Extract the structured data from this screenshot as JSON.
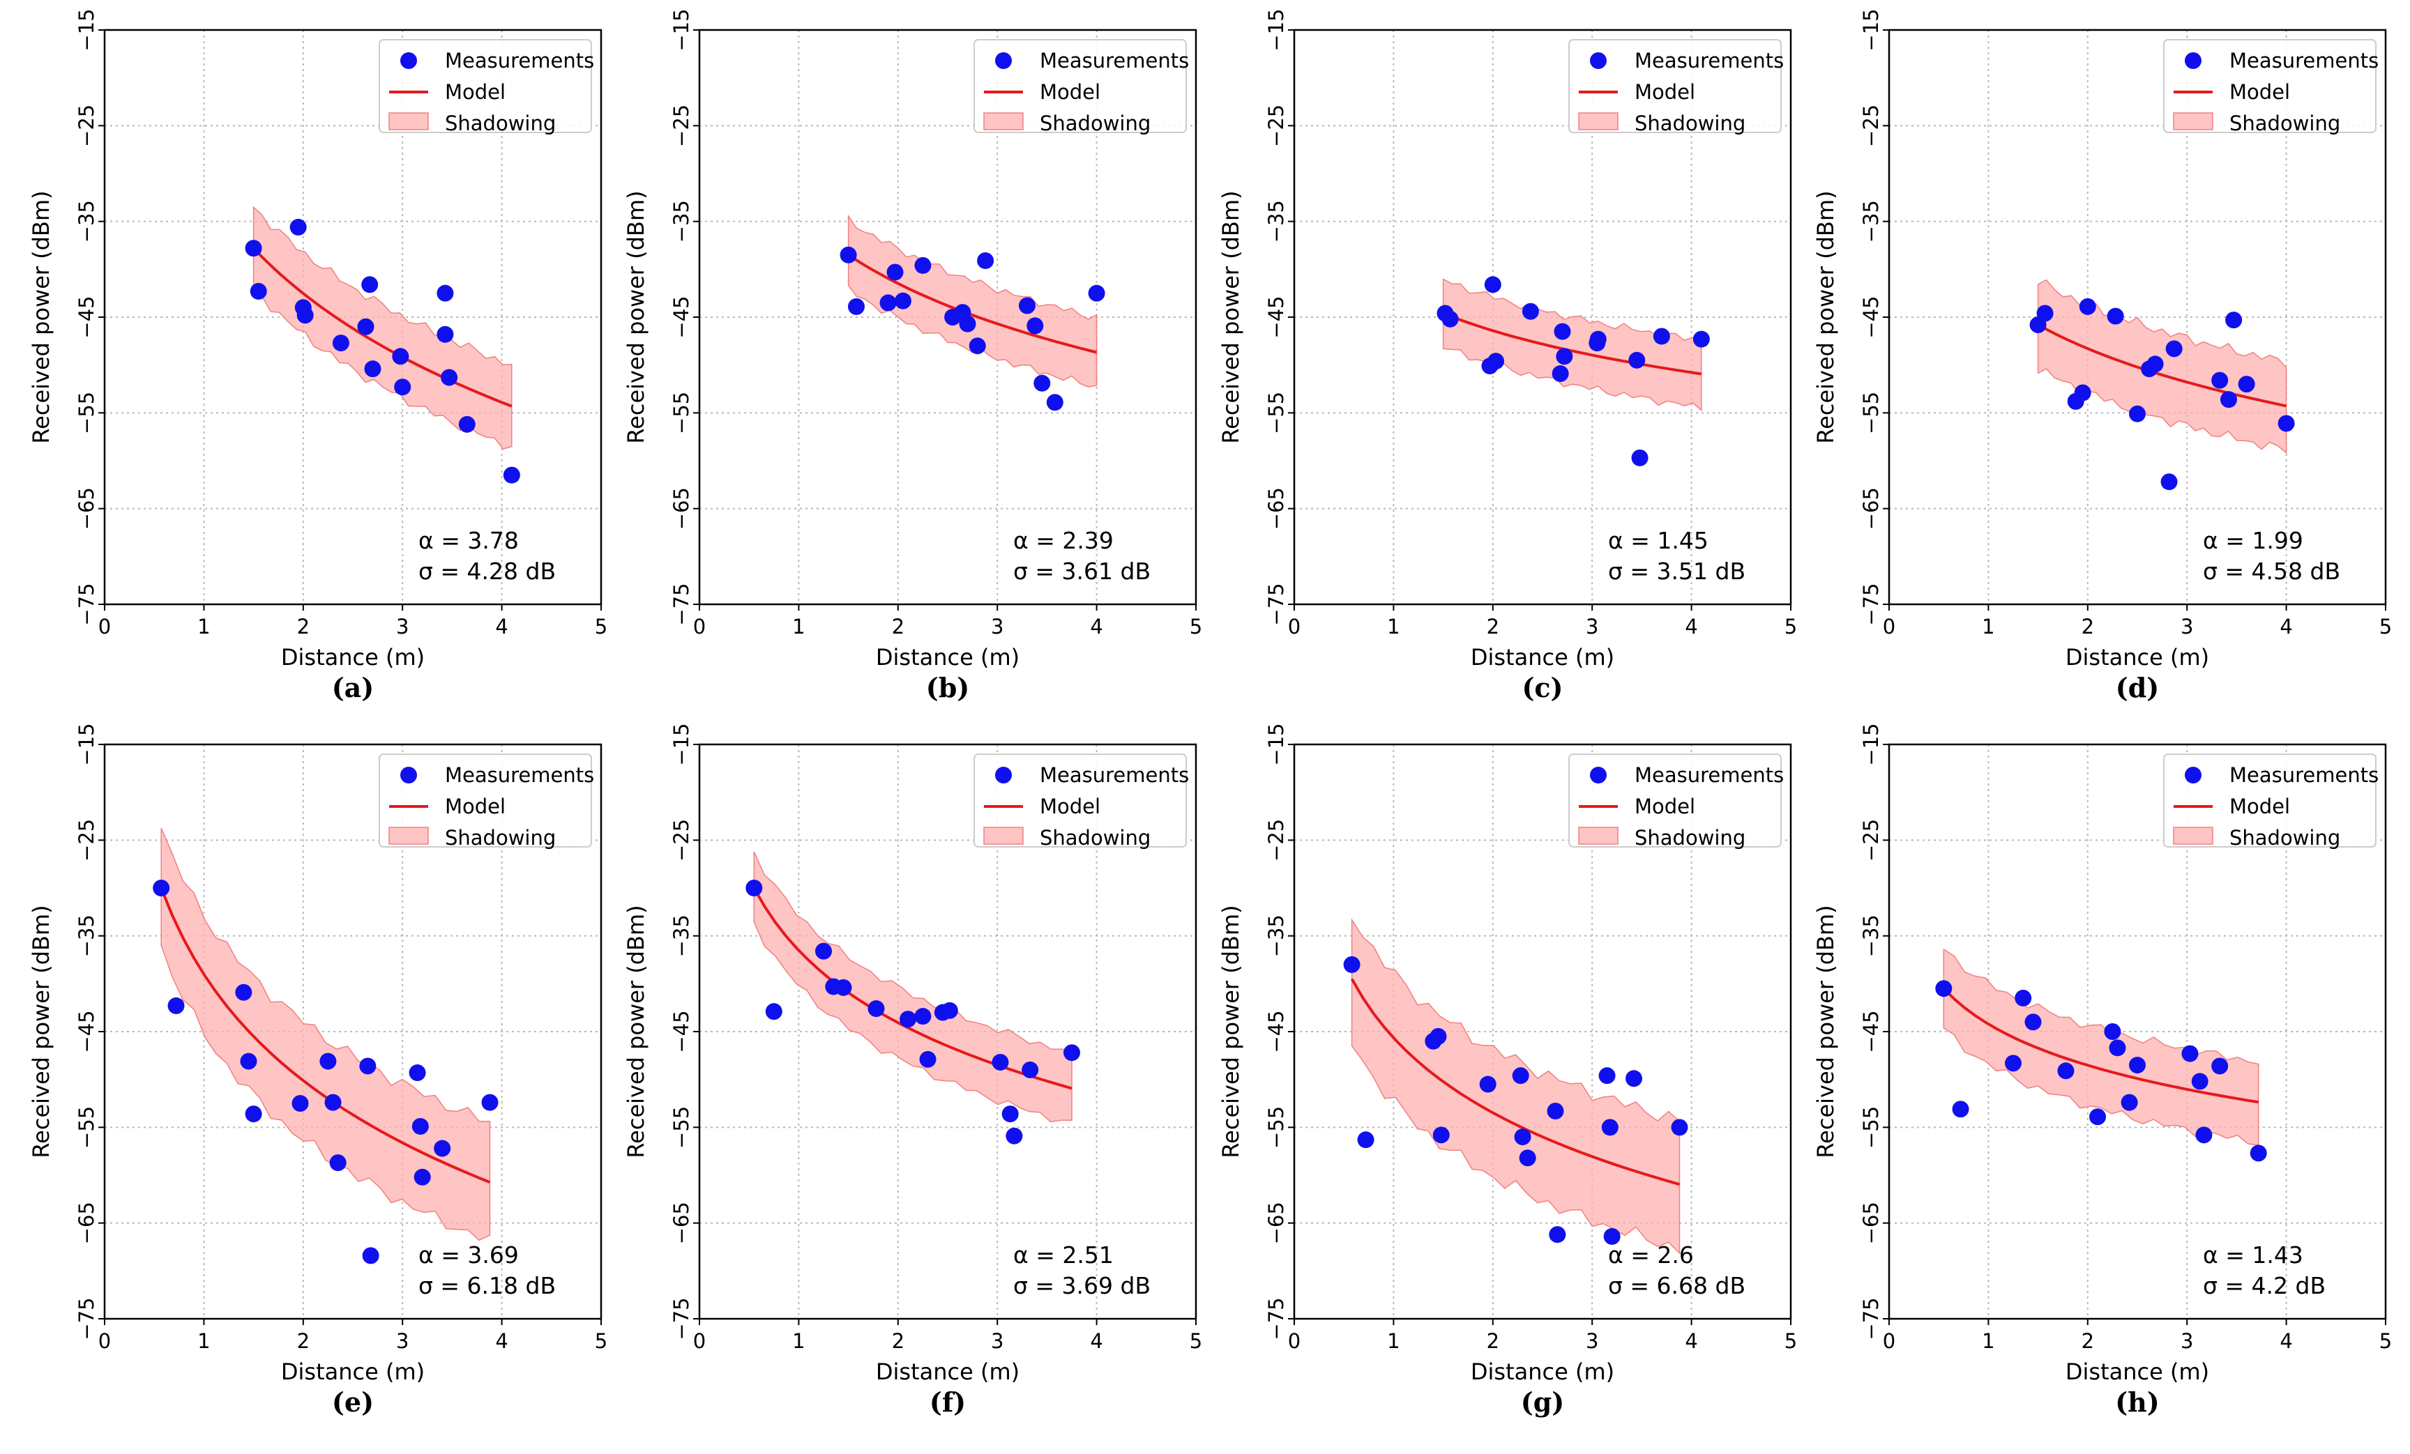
{
  "chart_data": [
    {
      "type": "scatter",
      "panel_label": "(a)",
      "xlabel": "Distance (m)",
      "ylabel": "Received power (dBm)",
      "xlim": [
        0,
        5
      ],
      "ylim": [
        -75,
        -15
      ],
      "xticks": [
        "0",
        "1",
        "2",
        "3",
        "4",
        "5"
      ],
      "yticks": [
        "−75",
        "−65",
        "−55",
        "−45",
        "−35",
        "−25",
        "−15"
      ],
      "grid": true,
      "legend": {
        "position": "top-right",
        "entries": [
          "Measurements",
          "Model",
          "Shadowing"
        ]
      },
      "measurements": {
        "name": "Measurements",
        "x": [
          1.5,
          1.55,
          1.95,
          2.0,
          2.02,
          2.38,
          2.63,
          2.67,
          2.7,
          2.98,
          3.0,
          3.43,
          3.43,
          3.47,
          3.65,
          4.1
        ],
        "y": [
          -37.8,
          -42.3,
          -35.6,
          -44.0,
          -44.8,
          -47.7,
          -46.0,
          -41.6,
          -50.4,
          -49.1,
          -52.3,
          -42.5,
          -46.8,
          -51.3,
          -56.2,
          -61.5
        ]
      },
      "model": {
        "name": "Model",
        "x_range": [
          1.5,
          4.1
        ],
        "y_start": -37.8,
        "alpha": 3.78
      },
      "shadowing": {
        "name": "Shadowing",
        "sigma_db": 4.28
      },
      "annotations": {
        "alpha_text": "α = 3.78",
        "sigma_text": "σ = 4.28 dB"
      }
    },
    {
      "type": "scatter",
      "panel_label": "(b)",
      "xlabel": "Distance (m)",
      "ylabel": "Received power (dBm)",
      "xlim": [
        0,
        5
      ],
      "ylim": [
        -75,
        -15
      ],
      "xticks": [
        "0",
        "1",
        "2",
        "3",
        "4",
        "5"
      ],
      "yticks": [
        "−75",
        "−65",
        "−55",
        "−45",
        "−35",
        "−25",
        "−15"
      ],
      "grid": true,
      "legend": {
        "position": "top-right",
        "entries": [
          "Measurements",
          "Model",
          "Shadowing"
        ]
      },
      "measurements": {
        "name": "Measurements",
        "x": [
          1.5,
          1.58,
          1.9,
          1.97,
          2.05,
          2.25,
          2.55,
          2.65,
          2.7,
          2.8,
          2.88,
          3.3,
          3.38,
          3.45,
          3.58,
          4.0
        ],
        "y": [
          -38.5,
          -43.9,
          -43.5,
          -40.3,
          -43.3,
          -39.6,
          -45.0,
          -44.5,
          -45.7,
          -48.0,
          -39.1,
          -43.8,
          -45.9,
          -51.9,
          -53.9,
          -42.5
        ]
      },
      "model": {
        "name": "Model",
        "x_range": [
          1.5,
          4.0
        ],
        "y_start": -38.5,
        "alpha": 2.39
      },
      "shadowing": {
        "name": "Shadowing",
        "sigma_db": 3.61
      },
      "annotations": {
        "alpha_text": "α = 2.39",
        "sigma_text": "σ = 3.61 dB"
      }
    },
    {
      "type": "scatter",
      "panel_label": "(c)",
      "xlabel": "Distance (m)",
      "ylabel": "Received power (dBm)",
      "xlim": [
        0,
        5
      ],
      "ylim": [
        -75,
        -15
      ],
      "xticks": [
        "0",
        "1",
        "2",
        "3",
        "4",
        "5"
      ],
      "yticks": [
        "−75",
        "−65",
        "−55",
        "−45",
        "−35",
        "−25",
        "−15"
      ],
      "grid": true,
      "legend": {
        "position": "top-right",
        "entries": [
          "Measurements",
          "Model",
          "Shadowing"
        ]
      },
      "measurements": {
        "name": "Measurements",
        "x": [
          1.52,
          1.57,
          1.97,
          2.0,
          2.03,
          2.38,
          2.68,
          2.7,
          2.72,
          3.05,
          3.06,
          3.45,
          3.48,
          3.7,
          4.1
        ],
        "y": [
          -44.6,
          -45.2,
          -50.1,
          -41.6,
          -49.6,
          -44.4,
          -50.9,
          -46.5,
          -49.1,
          -47.7,
          -47.3,
          -49.5,
          -59.7,
          -47.0,
          -47.3
        ]
      },
      "model": {
        "name": "Model",
        "x_range": [
          1.5,
          4.1
        ],
        "y_start": -44.6,
        "alpha": 1.45
      },
      "shadowing": {
        "name": "Shadowing",
        "sigma_db": 3.51
      },
      "annotations": {
        "alpha_text": "α = 1.45",
        "sigma_text": "σ = 3.51 dB"
      }
    },
    {
      "type": "scatter",
      "panel_label": "(d)",
      "xlabel": "Distance (m)",
      "ylabel": "Received power (dBm)",
      "xlim": [
        0,
        5
      ],
      "ylim": [
        -75,
        -15
      ],
      "xticks": [
        "0",
        "1",
        "2",
        "3",
        "4",
        "5"
      ],
      "yticks": [
        "−75",
        "−65",
        "−55",
        "−45",
        "−35",
        "−25",
        "−15"
      ],
      "grid": true,
      "legend": {
        "position": "top-right",
        "entries": [
          "Measurements",
          "Model",
          "Shadowing"
        ]
      },
      "measurements": {
        "name": "Measurements",
        "x": [
          1.5,
          1.57,
          1.88,
          1.95,
          2.0,
          2.28,
          2.5,
          2.62,
          2.68,
          2.82,
          2.87,
          3.33,
          3.42,
          3.47,
          3.6,
          4.0
        ],
        "y": [
          -45.8,
          -44.6,
          -53.8,
          -52.9,
          -43.9,
          -44.9,
          -55.1,
          -50.4,
          -49.9,
          -62.2,
          -48.3,
          -51.6,
          -53.6,
          -45.3,
          -52.0,
          -56.1
        ]
      },
      "model": {
        "name": "Model",
        "x_range": [
          1.5,
          4.0
        ],
        "y_start": -45.8,
        "alpha": 1.99
      },
      "shadowing": {
        "name": "Shadowing",
        "sigma_db": 4.58
      },
      "annotations": {
        "alpha_text": "α = 1.99",
        "sigma_text": "σ = 4.58 dB"
      }
    },
    {
      "type": "scatter",
      "panel_label": "(e)",
      "xlabel": "Distance (m)",
      "ylabel": "Received power (dBm)",
      "xlim": [
        0,
        5
      ],
      "ylim": [
        -75,
        -15
      ],
      "xticks": [
        "0",
        "1",
        "2",
        "3",
        "4",
        "5"
      ],
      "yticks": [
        "−75",
        "−65",
        "−55",
        "−45",
        "−35",
        "−25",
        "−15"
      ],
      "grid": true,
      "legend": {
        "position": "top-right",
        "entries": [
          "Measurements",
          "Model",
          "Shadowing"
        ]
      },
      "measurements": {
        "name": "Measurements",
        "x": [
          0.57,
          0.72,
          1.4,
          1.45,
          1.5,
          1.97,
          2.25,
          2.3,
          2.35,
          2.65,
          2.68,
          3.15,
          3.18,
          3.2,
          3.4,
          3.88
        ],
        "y": [
          -30.0,
          -42.3,
          -40.9,
          -48.1,
          -53.6,
          -52.5,
          -48.1,
          -52.4,
          -58.7,
          -48.6,
          -68.4,
          -49.3,
          -54.9,
          -60.2,
          -57.2,
          -52.4
        ]
      },
      "model": {
        "name": "Model",
        "x_range": [
          0.57,
          3.88
        ],
        "y_start": -30.0,
        "alpha": 3.69
      },
      "shadowing": {
        "name": "Shadowing",
        "sigma_db": 6.18
      },
      "annotations": {
        "alpha_text": "α = 3.69",
        "sigma_text": "σ = 6.18 dB"
      }
    },
    {
      "type": "scatter",
      "panel_label": "(f)",
      "xlabel": "Distance (m)",
      "ylabel": "Received power (dBm)",
      "xlim": [
        0,
        5
      ],
      "ylim": [
        -75,
        -15
      ],
      "xticks": [
        "0",
        "1",
        "2",
        "3",
        "4",
        "5"
      ],
      "yticks": [
        "−75",
        "−65",
        "−55",
        "−45",
        "−35",
        "−25",
        "−15"
      ],
      "grid": true,
      "legend": {
        "position": "top-right",
        "entries": [
          "Measurements",
          "Model",
          "Shadowing"
        ]
      },
      "measurements": {
        "name": "Measurements",
        "x": [
          0.55,
          0.75,
          1.25,
          1.35,
          1.45,
          1.78,
          2.1,
          2.25,
          2.3,
          2.45,
          2.52,
          3.03,
          3.13,
          3.17,
          3.33,
          3.75
        ],
        "y": [
          -30.0,
          -42.9,
          -36.6,
          -40.3,
          -40.4,
          -42.6,
          -43.7,
          -43.4,
          -47.9,
          -43.0,
          -42.8,
          -48.2,
          -53.6,
          -55.9,
          -49.0,
          -47.2
        ]
      },
      "model": {
        "name": "Model",
        "x_range": [
          0.55,
          3.75
        ],
        "y_start": -30.0,
        "alpha": 2.51
      },
      "shadowing": {
        "name": "Shadowing",
        "sigma_db": 3.69
      },
      "annotations": {
        "alpha_text": "α = 2.51",
        "sigma_text": "σ = 3.69 dB"
      }
    },
    {
      "type": "scatter",
      "panel_label": "(g)",
      "xlabel": "Distance (m)",
      "ylabel": "Received power (dBm)",
      "xlim": [
        0,
        5
      ],
      "ylim": [
        -75,
        -15
      ],
      "xticks": [
        "0",
        "1",
        "2",
        "3",
        "4",
        "5"
      ],
      "yticks": [
        "−75",
        "−65",
        "−55",
        "−45",
        "−35",
        "−25",
        "−15"
      ],
      "grid": true,
      "legend": {
        "position": "top-right",
        "entries": [
          "Measurements",
          "Model",
          "Shadowing"
        ]
      },
      "measurements": {
        "name": "Measurements",
        "x": [
          0.58,
          0.72,
          1.4,
          1.45,
          1.48,
          1.95,
          2.28,
          2.3,
          2.35,
          2.63,
          2.65,
          3.15,
          3.18,
          3.2,
          3.42,
          3.88
        ],
        "y": [
          -38.0,
          -56.3,
          -46.0,
          -45.5,
          -55.8,
          -50.5,
          -49.6,
          -56.0,
          -58.2,
          -53.3,
          -66.2,
          -49.6,
          -55.0,
          -66.4,
          -49.9,
          -55.0
        ]
      },
      "model": {
        "name": "Model",
        "x_range": [
          0.58,
          3.88
        ],
        "y_start": -39.5,
        "alpha": 2.6
      },
      "shadowing": {
        "name": "Shadowing",
        "sigma_db": 6.68
      },
      "annotations": {
        "alpha_text": "α = 2.6",
        "sigma_text": "σ = 6.68 dB"
      }
    },
    {
      "type": "scatter",
      "panel_label": "(h)",
      "xlabel": "Distance (m)",
      "ylabel": "Received power (dBm)",
      "xlim": [
        0,
        5
      ],
      "ylim": [
        -75,
        -15
      ],
      "xticks": [
        "0",
        "1",
        "2",
        "3",
        "4",
        "5"
      ],
      "yticks": [
        "−75",
        "−65",
        "−55",
        "−45",
        "−35",
        "−25",
        "−15"
      ],
      "grid": true,
      "legend": {
        "position": "top-right",
        "entries": [
          "Measurements",
          "Model",
          "Shadowing"
        ]
      },
      "measurements": {
        "name": "Measurements",
        "x": [
          0.55,
          0.72,
          1.25,
          1.35,
          1.45,
          1.78,
          2.1,
          2.25,
          2.3,
          2.42,
          2.5,
          3.03,
          3.13,
          3.17,
          3.33,
          3.72
        ],
        "y": [
          -40.5,
          -53.1,
          -48.3,
          -41.5,
          -44.0,
          -49.1,
          -53.9,
          -45.0,
          -46.7,
          -52.4,
          -48.5,
          -47.3,
          -50.2,
          -55.8,
          -48.6,
          -57.7
        ]
      },
      "model": {
        "name": "Model",
        "x_range": [
          0.55,
          3.72
        ],
        "y_start": -40.5,
        "alpha": 1.43
      },
      "shadowing": {
        "name": "Shadowing",
        "sigma_db": 4.2
      },
      "annotations": {
        "alpha_text": "α = 1.43",
        "sigma_text": "σ = 4.2 dB"
      }
    }
  ]
}
